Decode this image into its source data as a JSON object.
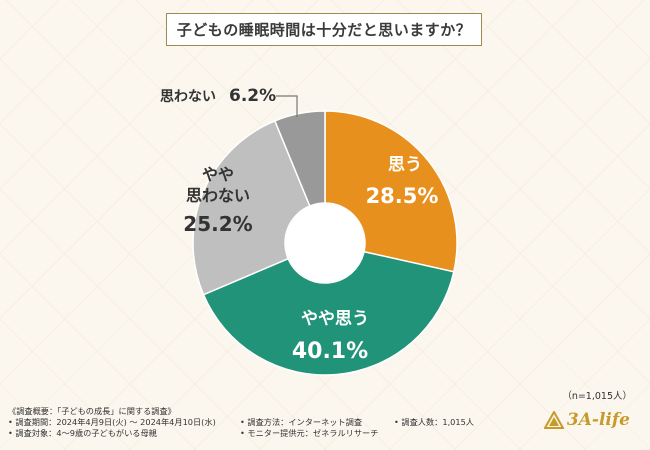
{
  "title": "子どもの睡眠時間は十分だと思いますか？",
  "chart_data": {
    "type": "pie",
    "donut": true,
    "categories": [
      "思う",
      "やや思う",
      "やや思わない",
      "思わない"
    ],
    "values": [
      28.5,
      40.1,
      25.2,
      6.2
    ],
    "value_labels": [
      "28.5%",
      "40.1%",
      "25.2%",
      "6.2%"
    ],
    "colors": [
      "#e8901e",
      "#219378",
      "#bfbfbf",
      "#999999"
    ]
  },
  "sample_size": "（n=1,015人）",
  "footer": {
    "heading": "《調査概要：「子どもの成長」に関する調査》",
    "period": "• 調査期間：2024年4月9日(火) ～ 2024年4月10日(水)",
    "method": "• 調査方法：インターネット調査",
    "count": "• 調査人数：1,015人",
    "target": "• 調査対象：4～9歳の子どもがいる母親",
    "provider": "• モニター提供元：ゼネラルリサーチ"
  },
  "logo": {
    "text": "3A-life",
    "color": "#c79b2a"
  }
}
